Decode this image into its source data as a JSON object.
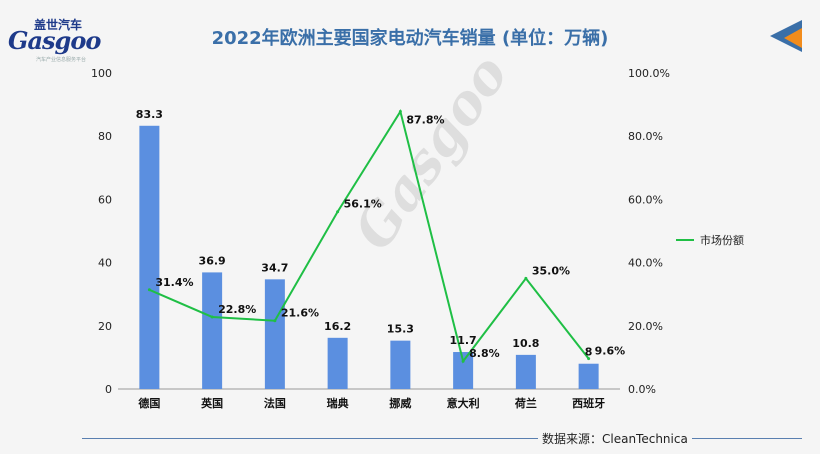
{
  "logo": {
    "top_text": "盖世汽车",
    "main_text": "Gasgoo",
    "sub_text": "汽车产业信息服务平台"
  },
  "watermark": "Gasgoo",
  "colors": {
    "bar": "#5b8fe0",
    "line": "#1fbf45",
    "title": "#3a6fa8"
  },
  "source": "数据来源：CleanTechnica",
  "chart_data": {
    "type": "bar",
    "title": "2022年欧洲主要国家电动汽车销量 (单位：万辆)",
    "categories": [
      "德国",
      "英国",
      "法国",
      "瑞典",
      "挪威",
      "意大利",
      "荷兰",
      "西班牙"
    ],
    "series": [
      {
        "type": "bar",
        "axis": "left",
        "values": [
          83.3,
          36.9,
          34.7,
          16.2,
          15.3,
          11.7,
          10.8,
          8
        ]
      },
      {
        "type": "line",
        "axis": "right",
        "name": "市场份额",
        "values": [
          31.4,
          22.8,
          21.6,
          56.1,
          87.8,
          8.8,
          35.0,
          9.6
        ],
        "labels": [
          "31.4%",
          "22.8%",
          "21.6%",
          "56.1%",
          "87.8%",
          "8.8%",
          "35.0%",
          "9.6%"
        ]
      }
    ],
    "bar_labels": [
      "83.3",
      "36.9",
      "34.7",
      "16.2",
      "15.3",
      "11.7",
      "10.8",
      "8"
    ],
    "y_left": {
      "ylim": [
        0,
        100
      ],
      "ticks": [
        "0",
        "20",
        "40",
        "60",
        "80",
        "100"
      ]
    },
    "y_right": {
      "ylim": [
        0,
        100
      ],
      "ticks": [
        "0.0%",
        "20.0%",
        "40.0%",
        "60.0%",
        "80.0%",
        "100.0%"
      ]
    },
    "legend": {
      "position": "right",
      "entries": [
        "市场份额"
      ]
    },
    "grid": false
  }
}
